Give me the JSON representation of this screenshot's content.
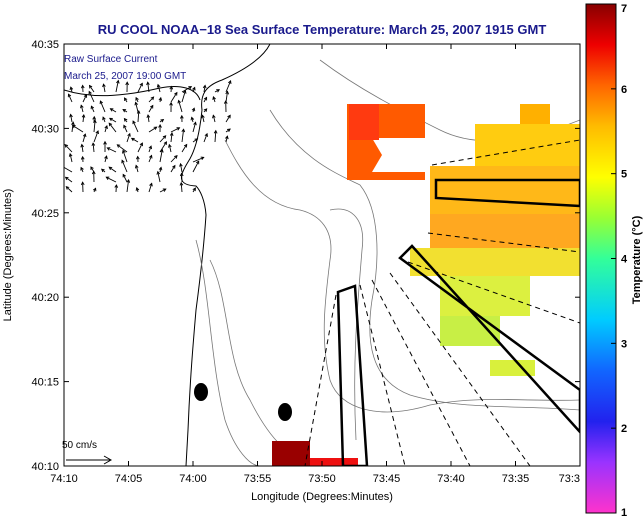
{
  "chart_data": {
    "type": "heatmap",
    "title": "RU COOL  NOAA−18  Sea Surface Temperature:  March 25, 2007 1915 GMT",
    "xlabel": "Longitude (Degrees:Minutes)",
    "ylabel": "Latitude (Degrees:Minutes)",
    "x_tick_labels": [
      "74:10",
      "74:05",
      "74:00",
      "73:55",
      "73:50",
      "73:45",
      "73:40",
      "73:35",
      "73:3"
    ],
    "y_tick_labels": [
      "40:35",
      "40:30",
      "40:25",
      "40:20",
      "40:15",
      "40:10"
    ],
    "xlim_minutes_west": [
      70,
      30
    ],
    "ylim_minutes_north": [
      10,
      35
    ],
    "colorbar": {
      "label": "Temperature (°C)",
      "ticks": [
        "1",
        "2",
        "3",
        "4",
        "5",
        "6",
        "7"
      ],
      "range": [
        1,
        7
      ]
    },
    "annotations": {
      "current_label": "Raw Surface Current",
      "current_time": "March 25, 2007 19:00 GMT",
      "scale_label": "50 cm/s"
    },
    "sst_patches": [
      {
        "lon": [
          73.87,
          73.73
        ],
        "lat": [
          40.27,
          40.31
        ],
        "temp": 5.8
      },
      {
        "lon": [
          73.68,
          73.52
        ],
        "lat": [
          40.3,
          40.32
        ],
        "temp": 5.2
      },
      {
        "lon": [
          73.66,
          73.5
        ],
        "lat": [
          40.24,
          40.3
        ],
        "temp": 5.0
      },
      {
        "lon": [
          73.66,
          73.5
        ],
        "lat": [
          40.2,
          40.24
        ],
        "temp": 4.6
      },
      {
        "lon": [
          73.66,
          73.58
        ],
        "lat": [
          40.16,
          40.2
        ],
        "temp": 4.2
      },
      {
        "lon": [
          73.83,
          73.77
        ],
        "lat": [
          40.1,
          40.12
        ],
        "temp": 6.8
      }
    ]
  }
}
